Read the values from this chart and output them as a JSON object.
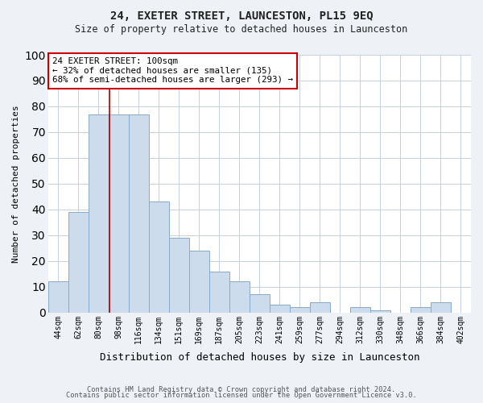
{
  "title": "24, EXETER STREET, LAUNCESTON, PL15 9EQ",
  "subtitle": "Size of property relative to detached houses in Launceston",
  "xlabel": "Distribution of detached houses by size in Launceston",
  "ylabel": "Number of detached properties",
  "footnote1": "Contains HM Land Registry data © Crown copyright and database right 2024.",
  "footnote2": "Contains public sector information licensed under the Open Government Licence v3.0.",
  "categories": [
    "44sqm",
    "62sqm",
    "80sqm",
    "98sqm",
    "116sqm",
    "134sqm",
    "151sqm",
    "169sqm",
    "187sqm",
    "205sqm",
    "223sqm",
    "241sqm",
    "259sqm",
    "277sqm",
    "294sqm",
    "312sqm",
    "330sqm",
    "348sqm",
    "366sqm",
    "384sqm",
    "402sqm"
  ],
  "values": [
    12,
    39,
    77,
    77,
    77,
    43,
    29,
    24,
    16,
    12,
    7,
    3,
    2,
    4,
    0,
    2,
    1,
    0,
    2,
    4,
    0
  ],
  "bar_color": "#ccdcec",
  "bar_edge_color": "#88aac8",
  "red_line_x": 2.56,
  "highlight_color": "#aa0000",
  "annotation_line1": "24 EXETER STREET: 100sqm",
  "annotation_line2": "← 32% of detached houses are smaller (135)",
  "annotation_line3": "68% of semi-detached houses are larger (293) →",
  "annotation_box_color": "#ffffff",
  "annotation_box_edge": "#cc0000",
  "ylim": [
    0,
    100
  ],
  "yticks": [
    0,
    10,
    20,
    30,
    40,
    50,
    60,
    70,
    80,
    90,
    100
  ],
  "bg_color": "#eef2f7",
  "plot_bg_color": "#ffffff",
  "grid_color": "#c8d0dc"
}
